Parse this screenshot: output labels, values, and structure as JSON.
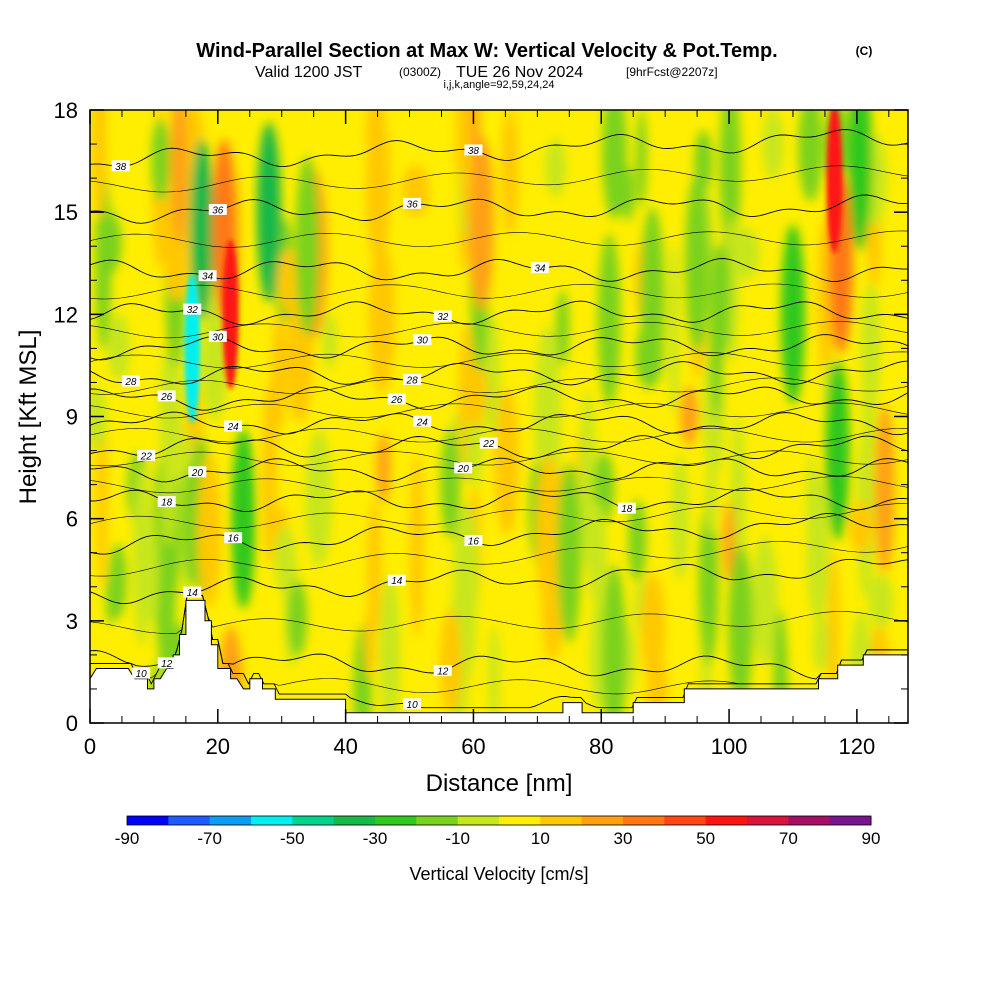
{
  "chart_data": {
    "type": "heatmap",
    "title_main": "Wind-Parallel Section at Max W: Vertical Velocity & Pot.Temp.",
    "title_mark": "(C)",
    "subtitle_valid": "Valid 1200 JST",
    "subtitle_utc": "(0300Z)",
    "subtitle_date": "TUE 26 Nov 2024",
    "subtitle_fcst": "[9hrFcst@2207z]",
    "subtitle_indices": "i,j,k,angle=92,59,24,24",
    "xlabel": "Distance [nm]",
    "ylabel": "Height [Kft MSL]",
    "xlim": [
      0,
      128
    ],
    "ylim": [
      0,
      18
    ],
    "x_ticks": [
      "0",
      "20",
      "40",
      "60",
      "80",
      "100",
      "120"
    ],
    "y_ticks": [
      "0",
      "3",
      "6",
      "9",
      "12",
      "15",
      "18"
    ],
    "colorbar": {
      "label": "Vertical Velocity [cm/s]",
      "tick_labels": [
        "-90",
        "-70",
        "-50",
        "-30",
        "-10",
        "10",
        "30",
        "50",
        "70",
        "90"
      ],
      "bounds": [
        -90,
        90
      ],
      "colors": [
        "#0000ff",
        "#1e5cff",
        "#0c9cf2",
        "#00f0f0",
        "#00d28c",
        "#18b848",
        "#2ec81e",
        "#7ad21e",
        "#c8e61e",
        "#ffee00",
        "#ffc800",
        "#ffa014",
        "#ff7814",
        "#ff4614",
        "#ff1414",
        "#d7143c",
        "#a50f64",
        "#78148c"
      ]
    },
    "terrain_kft": [
      [
        0,
        1.3
      ],
      [
        1,
        1.6
      ],
      [
        2,
        1.6
      ],
      [
        4,
        1.6
      ],
      [
        6,
        1.6
      ],
      [
        7,
        1.3
      ],
      [
        9,
        1.3
      ],
      [
        9,
        1.0
      ],
      [
        10,
        1.0
      ],
      [
        10,
        1.3
      ],
      [
        11,
        1.3
      ],
      [
        12,
        1.6
      ],
      [
        13,
        1.6
      ],
      [
        13,
        2.0
      ],
      [
        14,
        2.0
      ],
      [
        14,
        2.6
      ],
      [
        15,
        2.6
      ],
      [
        15,
        3.6
      ],
      [
        18,
        3.6
      ],
      [
        18,
        3.0
      ],
      [
        19,
        3.0
      ],
      [
        19,
        2.3
      ],
      [
        20,
        2.3
      ],
      [
        20,
        1.6
      ],
      [
        22,
        1.6
      ],
      [
        22,
        1.3
      ],
      [
        23,
        1.3
      ],
      [
        24,
        1.0
      ],
      [
        25,
        1.0
      ],
      [
        25,
        1.3
      ],
      [
        27,
        1.3
      ],
      [
        27,
        1.0
      ],
      [
        29,
        1.0
      ],
      [
        29,
        0.7
      ],
      [
        40,
        0.7
      ],
      [
        40,
        0.3
      ],
      [
        74,
        0.3
      ],
      [
        74,
        0.6
      ],
      [
        77,
        0.6
      ],
      [
        77,
        0.3
      ],
      [
        85,
        0.3
      ],
      [
        85,
        0.6
      ],
      [
        93,
        0.6
      ],
      [
        93,
        1.0
      ],
      [
        114,
        1.0
      ],
      [
        114,
        1.3
      ],
      [
        117,
        1.3
      ],
      [
        117,
        1.7
      ],
      [
        121,
        1.7
      ],
      [
        121,
        2.0
      ],
      [
        128,
        2.0
      ]
    ],
    "theta_contours_k": [
      {
        "level": 10,
        "label": "10",
        "y_left": 0.5,
        "y_right": 0.4
      },
      {
        "level": 12,
        "label": "12",
        "y_left": 1.8,
        "y_right": 1.6
      },
      {
        "level": 14,
        "label": "14",
        "y_left": 3.8,
        "y_right": 4.6
      },
      {
        "level": 16,
        "label": "16",
        "y_left": 5.2,
        "y_right": 5.9
      },
      {
        "level": 18,
        "label": "18",
        "y_left": 6.5,
        "y_right": 6.6
      },
      {
        "level": 20,
        "label": "20",
        "y_left": 7.4,
        "y_right": 7.5
      },
      {
        "level": 22,
        "label": "22",
        "y_left": 8.1,
        "y_right": 8.1
      },
      {
        "level": 24,
        "label": "24",
        "y_left": 8.8,
        "y_right": 8.8
      },
      {
        "level": 26,
        "label": "26",
        "y_left": 9.5,
        "y_right": 9.6
      },
      {
        "level": 28,
        "label": "28",
        "y_left": 10.2,
        "y_right": 10.3
      },
      {
        "level": 30,
        "label": "30",
        "y_left": 11.0,
        "y_right": 11.1
      },
      {
        "level": 32,
        "label": "32",
        "y_left": 12.0,
        "y_right": 12.1
      },
      {
        "level": 34,
        "label": "34",
        "y_left": 13.3,
        "y_right": 13.3
      },
      {
        "level": 36,
        "label": "36",
        "y_left": 15.0,
        "y_right": 15.2
      },
      {
        "level": 38,
        "label": "38",
        "y_left": 16.5,
        "y_right": 17.2
      }
    ],
    "w_features_cm_s": [
      {
        "x": 16,
        "y": 11,
        "value": -55
      },
      {
        "x": 17.5,
        "y": 14.5,
        "value": -35
      },
      {
        "x": 22,
        "y": 12,
        "value": 50
      },
      {
        "x": 21,
        "y": 14.5,
        "value": 35
      },
      {
        "x": 28,
        "y": 15,
        "value": -35
      },
      {
        "x": 24,
        "y": 6,
        "value": -25
      },
      {
        "x": 34,
        "y": 14,
        "value": -15
      },
      {
        "x": 116.5,
        "y": 16,
        "value": 55
      },
      {
        "x": 117.5,
        "y": 13.5,
        "value": 35
      },
      {
        "x": 120.5,
        "y": 16.5,
        "value": -25
      },
      {
        "x": 110,
        "y": 12,
        "value": -30
      },
      {
        "x": 117,
        "y": 8,
        "value": -30
      },
      {
        "x": 88,
        "y": 12.5,
        "value": -15
      },
      {
        "x": 82,
        "y": 2,
        "value": -20
      },
      {
        "x": 95,
        "y": 13.5,
        "value": -15
      },
      {
        "x": 75,
        "y": 5,
        "value": -15
      }
    ]
  }
}
